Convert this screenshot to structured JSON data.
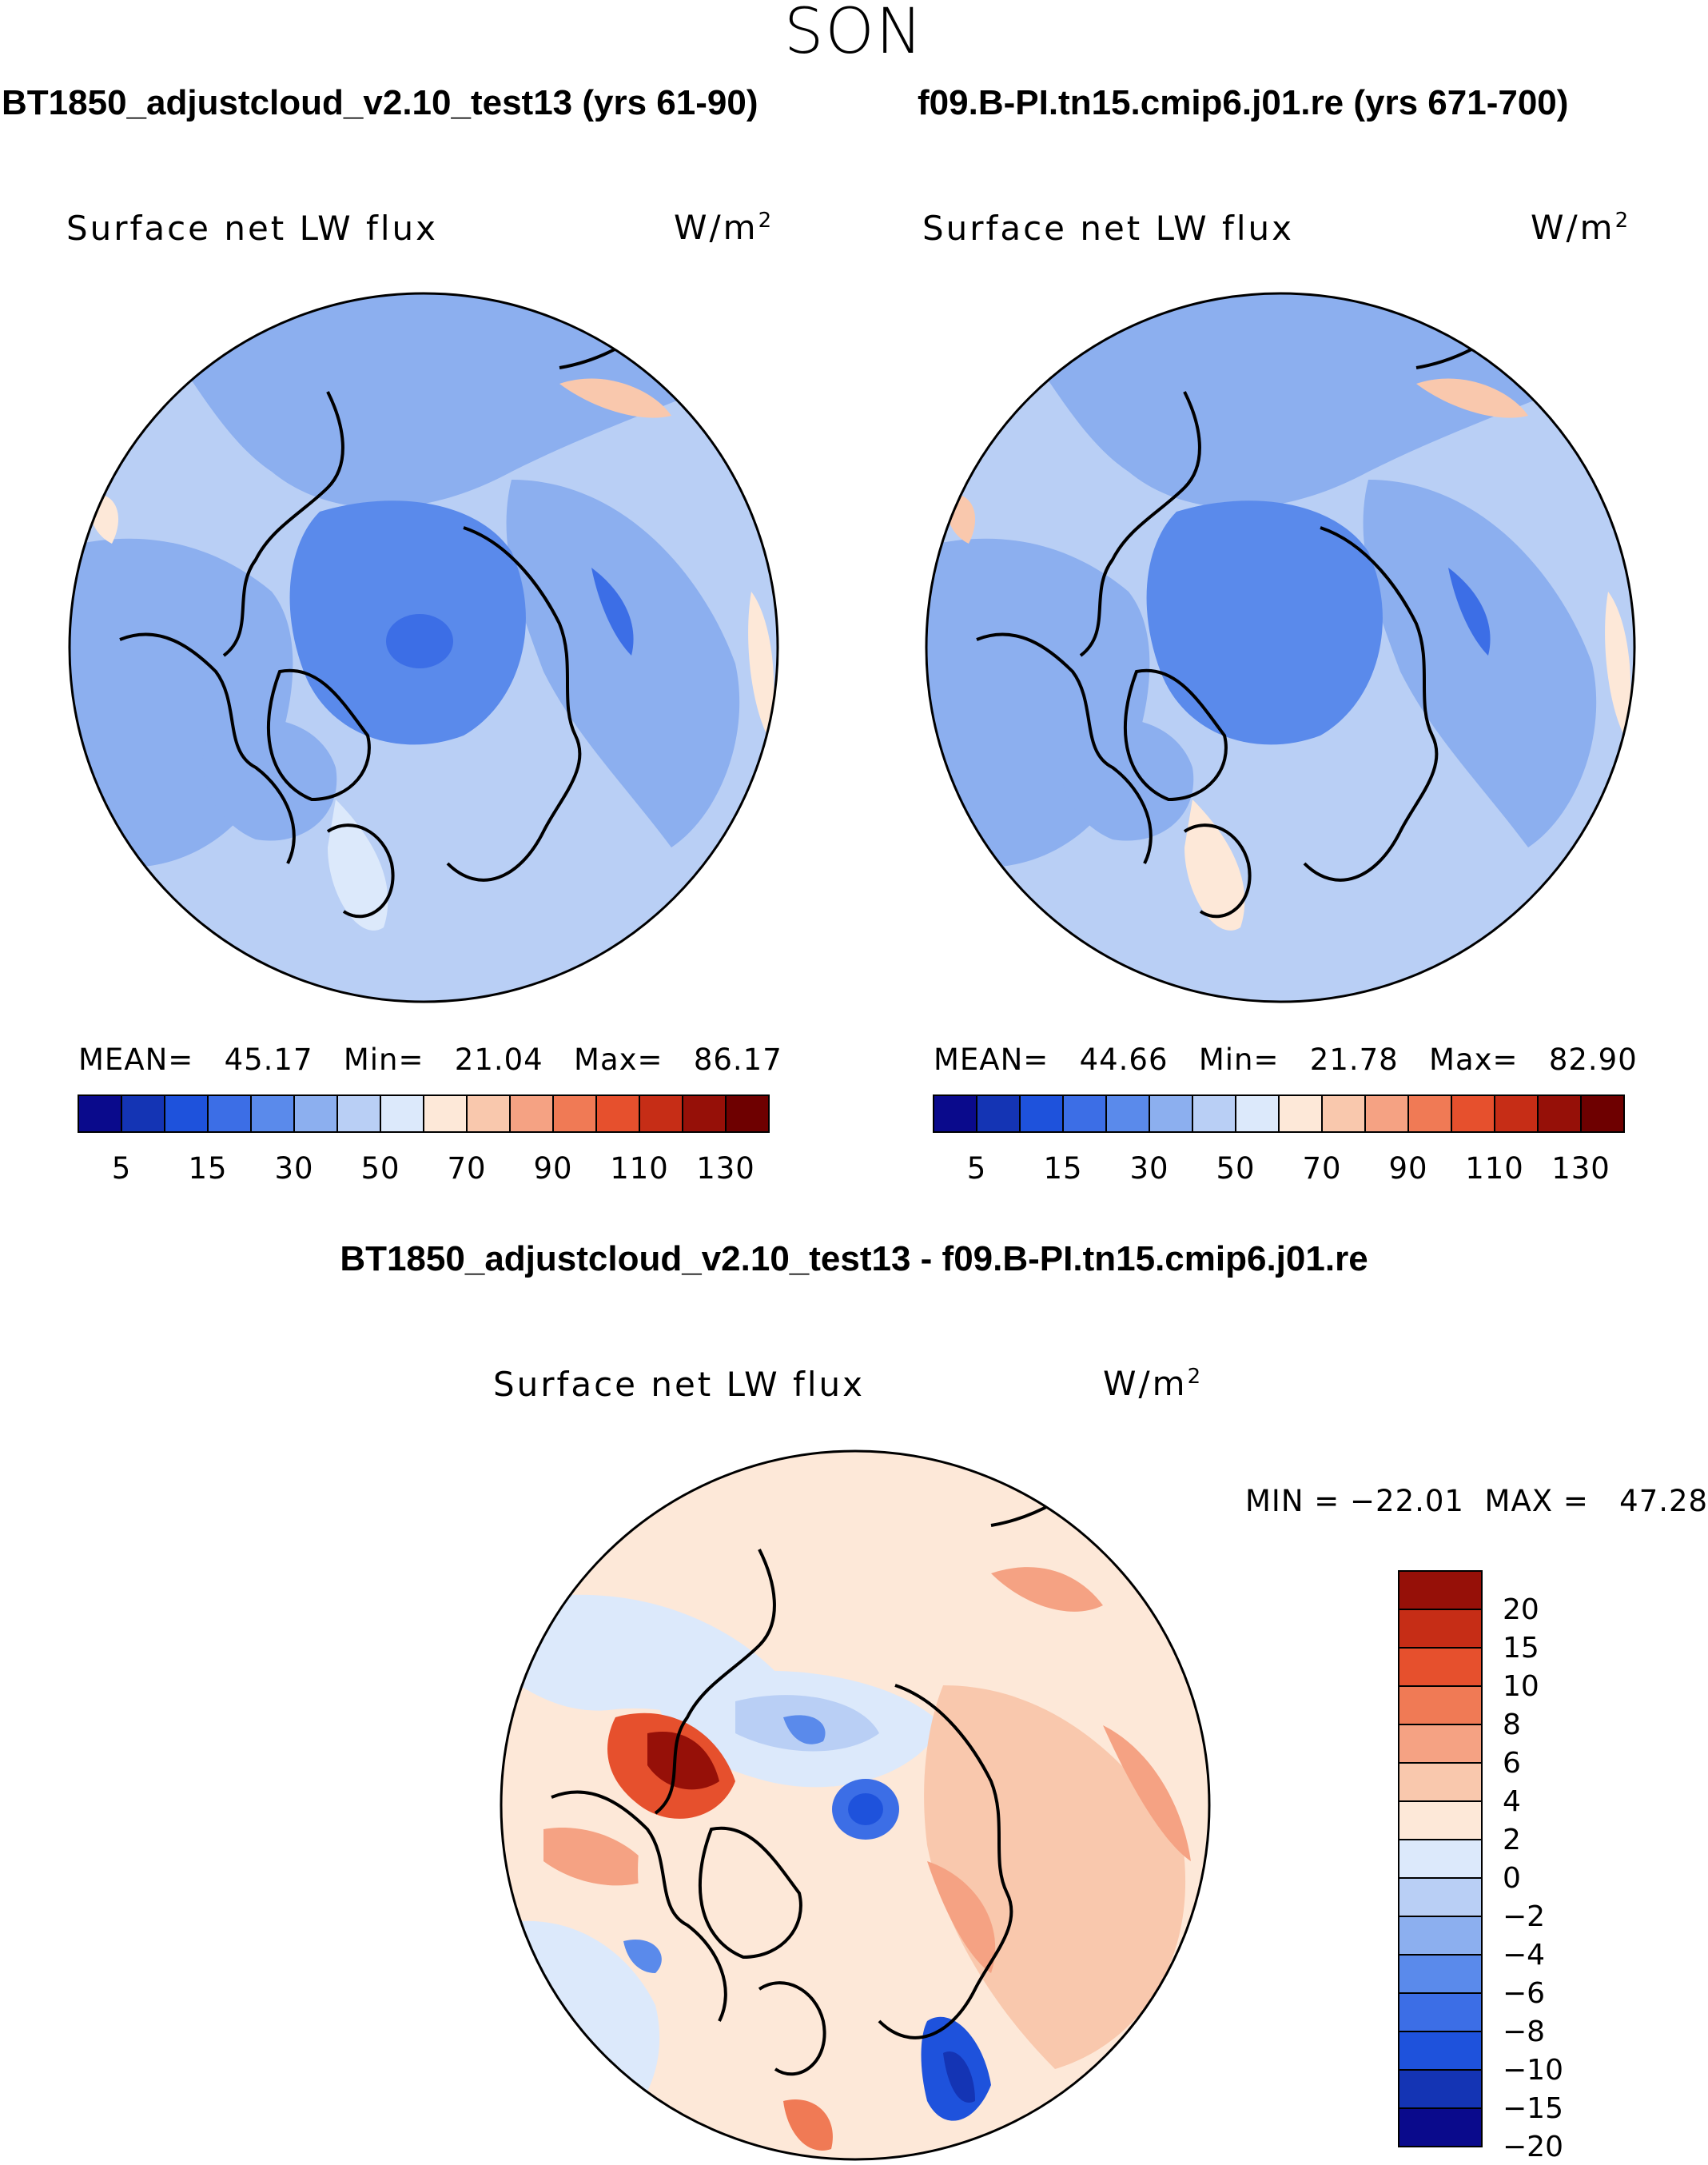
{
  "season": "SON",
  "panels": [
    {
      "title": "BT1850_adjustcloud_v2.10_test13 (yrs 61-90)",
      "variable": "Surface net LW flux",
      "units": "W/m",
      "units_exp": "2",
      "stats": {
        "mean_label": "MEAN=",
        "mean": "45.17",
        "min_label": "Min=",
        "min": "21.04",
        "max_label": "Max=",
        "max": "86.17"
      }
    },
    {
      "title": "f09.B-PI.tn15.cmip6.j01.re (yrs 671-700)",
      "variable": "Surface net LW flux",
      "units": "W/m",
      "units_exp": "2",
      "stats": {
        "mean_label": "MEAN=",
        "mean": "44.66",
        "min_label": "Min=",
        "min": "21.78",
        "max_label": "Max=",
        "max": "82.90"
      }
    }
  ],
  "diff": {
    "title": "BT1850_adjustcloud_v2.10_test13 - f09.B-PI.tn15.cmip6.j01.re",
    "variable": "Surface net LW flux",
    "units": "W/m",
    "units_exp": "2",
    "stats": {
      "min_label": "MIN =",
      "min": "−22.01",
      "max_label": "MAX =",
      "max": "47.28"
    }
  },
  "colors": {
    "abs_scale": [
      "#0a0a8c",
      "#1434b4",
      "#1e52dc",
      "#3c6ee6",
      "#5a8aeb",
      "#8cafef",
      "#b9cff5",
      "#dce9fb",
      "#fde8d8",
      "#f9c8ad",
      "#f5a283",
      "#f07a55",
      "#e6502d",
      "#c62d16",
      "#961008",
      "#6e0000"
    ],
    "diff_scale": [
      "#0a0a8c",
      "#1434b4",
      "#1e52dc",
      "#3c6ee6",
      "#5a8aeb",
      "#8cafef",
      "#b9cff5",
      "#dce9fb",
      "#fde8d8",
      "#f9c8ad",
      "#f5a283",
      "#f07a55",
      "#e6502d",
      "#c62d16",
      "#961008"
    ]
  },
  "chart_data": [
    {
      "type": "heatmap",
      "projection": "north polar stereographic",
      "title": "BT1850_adjustcloud_v2.10_test13 (yrs 61-90)",
      "variable": "Surface net LW flux",
      "units": "W/m2",
      "colorbar_levels": [
        5,
        10,
        15,
        20,
        30,
        40,
        50,
        60,
        70,
        80,
        90,
        100,
        110,
        120,
        130
      ],
      "colorbar_ticks": [
        "5",
        "15",
        "30",
        "50",
        "70",
        "90",
        "110",
        "130"
      ],
      "mean": 45.17,
      "min": 21.04,
      "max": 86.17
    },
    {
      "type": "heatmap",
      "projection": "north polar stereographic",
      "title": "f09.B-PI.tn15.cmip6.j01.re (yrs 671-700)",
      "variable": "Surface net LW flux",
      "units": "W/m2",
      "colorbar_levels": [
        5,
        10,
        15,
        20,
        30,
        40,
        50,
        60,
        70,
        80,
        90,
        100,
        110,
        120,
        130
      ],
      "colorbar_ticks": [
        "5",
        "15",
        "30",
        "50",
        "70",
        "90",
        "110",
        "130"
      ],
      "mean": 44.66,
      "min": 21.78,
      "max": 82.9
    },
    {
      "type": "heatmap",
      "projection": "north polar stereographic",
      "title": "BT1850_adjustcloud_v2.10_test13 - f09.B-PI.tn15.cmip6.j01.re",
      "variable": "Surface net LW flux",
      "units": "W/m2",
      "colorbar_levels": [
        -20,
        -15,
        -10,
        -8,
        -6,
        -4,
        -2,
        0,
        2,
        4,
        6,
        8,
        10,
        15,
        20
      ],
      "colorbar_ticks": [
        "20",
        "15",
        "10",
        "8",
        "6",
        "4",
        "2",
        "0",
        "−2",
        "−4",
        "−6",
        "−8",
        "−10",
        "−15",
        "−20"
      ],
      "min": -22.01,
      "max": 47.28
    }
  ]
}
